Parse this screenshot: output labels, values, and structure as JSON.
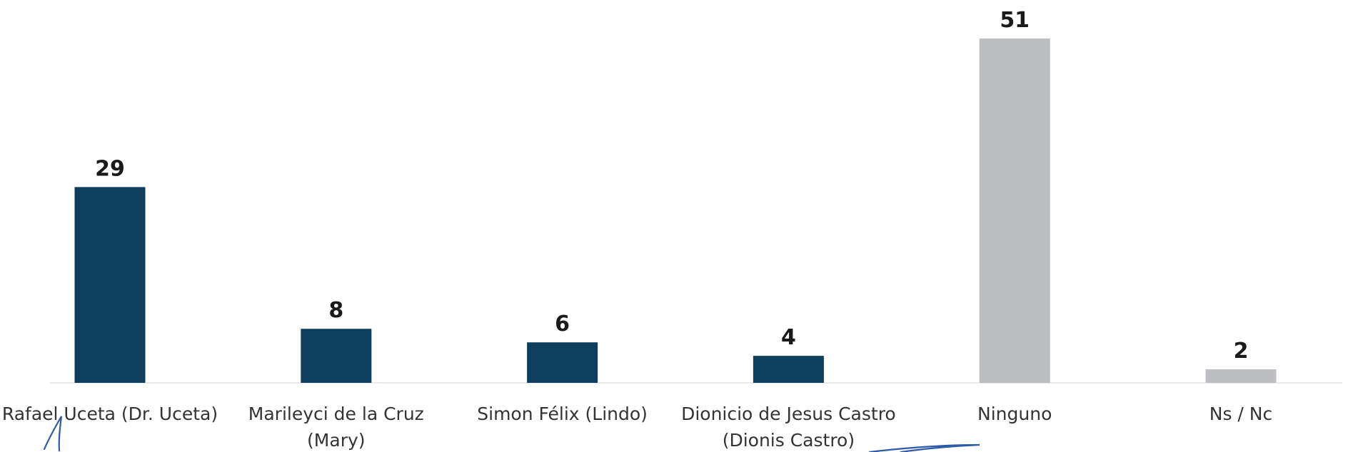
{
  "chart_data": {
    "type": "bar",
    "title": "",
    "xlabel": "",
    "ylabel": "",
    "ylim": [
      0,
      51
    ],
    "grid": false,
    "legend": "none",
    "categories": [
      [
        "Rafael Uceta (Dr. Uceta)"
      ],
      [
        "Marileyci de la Cruz",
        "(Mary)"
      ],
      [
        "Simon Félix (Lindo)"
      ],
      [
        "Dionicio de Jesus Castro",
        "(Dionis Castro)"
      ],
      [
        "Ninguno"
      ],
      [
        "Ns / Nc"
      ]
    ],
    "values": [
      29,
      8,
      6,
      4,
      51,
      2
    ],
    "value_labels": [
      "29",
      "8",
      "6",
      "4",
      "51",
      "2"
    ],
    "colors": [
      "#0d3e5e",
      "#0d3e5e",
      "#0d3e5e",
      "#0d3e5e",
      "#bdbec2",
      "#bdbec2"
    ],
    "label_colors": [
      "#333333",
      "#333333",
      "#333333",
      "#333333",
      "#333333",
      "#6f6f6f"
    ]
  }
}
